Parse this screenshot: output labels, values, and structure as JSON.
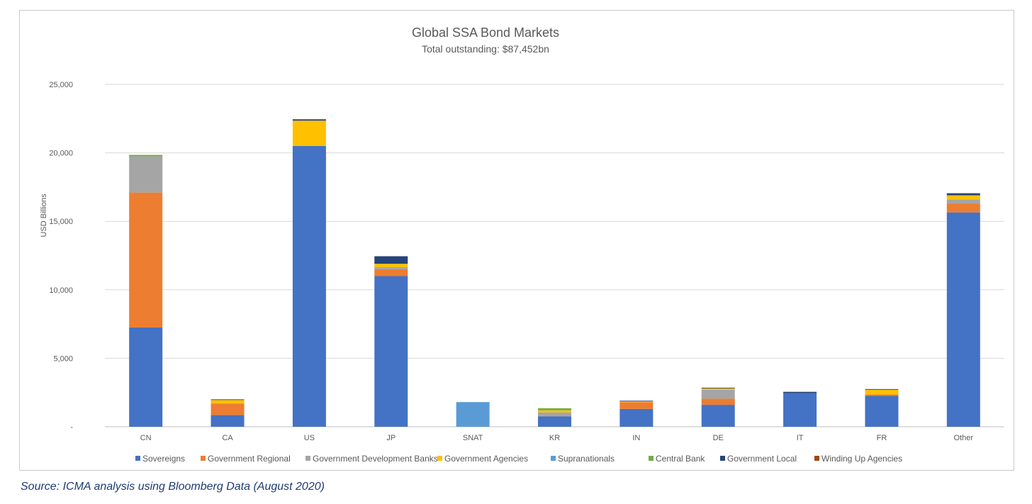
{
  "chart_data": {
    "type": "bar",
    "stacked": true,
    "title": "Global SSA Bond Markets",
    "subtitle": "Total outstanding: $87,452bn",
    "ylabel": "USD Billions",
    "xlabel": "",
    "ylim": [
      0,
      25000
    ],
    "yticks": [
      0,
      5000,
      10000,
      15000,
      20000,
      25000
    ],
    "ytick_labels": [
      "-",
      "5,000",
      "10,000",
      "15,000",
      "20,000",
      "25,000"
    ],
    "grid": true,
    "legend_position": "bottom",
    "categories": [
      "CN",
      "CA",
      "US",
      "JP",
      "SNAT",
      "KR",
      "IN",
      "DE",
      "IT",
      "FR",
      "Other"
    ],
    "series": [
      {
        "name": "Sovereigns",
        "color": "#4472C4",
        "values": [
          7250,
          850,
          20500,
          11000,
          0,
          750,
          1300,
          1600,
          2450,
          2250,
          15650
        ]
      },
      {
        "name": "Government Regional",
        "color": "#ED7D31",
        "values": [
          9850,
          850,
          0,
          500,
          0,
          0,
          500,
          450,
          0,
          100,
          650
        ]
      },
      {
        "name": "Government Development Banks",
        "color": "#A5A5A5",
        "values": [
          2650,
          0,
          0,
          150,
          0,
          300,
          0,
          650,
          0,
          0,
          300
        ]
      },
      {
        "name": "Government Agencies",
        "color": "#FFC000",
        "values": [
          0,
          250,
          1850,
          250,
          0,
          150,
          50,
          100,
          0,
          350,
          300
        ]
      },
      {
        "name": "Supranationals",
        "color": "#5B9BD5",
        "values": [
          0,
          0,
          0,
          0,
          1800,
          0,
          0,
          0,
          0,
          0,
          0
        ]
      },
      {
        "name": "Central Bank",
        "color": "#70AD47",
        "values": [
          100,
          0,
          0,
          0,
          0,
          150,
          0,
          0,
          0,
          0,
          0
        ]
      },
      {
        "name": "Government Local",
        "color": "#264478",
        "values": [
          0,
          50,
          100,
          550,
          0,
          0,
          50,
          50,
          100,
          50,
          150
        ]
      },
      {
        "name": "Winding Up Agencies",
        "color": "#9E480E",
        "values": [
          0,
          0,
          0,
          0,
          0,
          0,
          0,
          0,
          0,
          0,
          0
        ]
      }
    ]
  },
  "source_note": "Source: ICMA analysis using Bloomberg Data (August 2020)"
}
